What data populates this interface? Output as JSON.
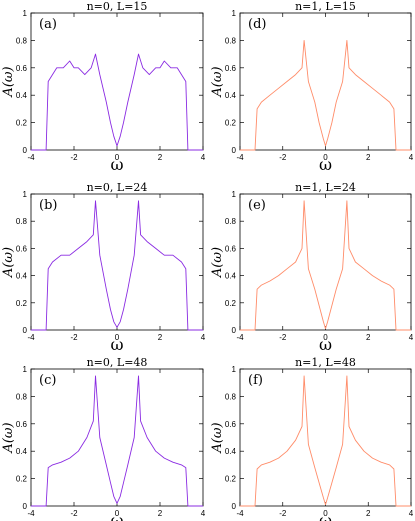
{
  "colors": {
    "n0": "#8a2be2",
    "n1": "#ff8c69"
  },
  "chart_data": [
    {
      "type": "line",
      "panel_label": "(a)",
      "title": "n=0, L=15",
      "xlabel": "ω",
      "ylabel": "A(ω)",
      "xlim": [
        -4,
        4
      ],
      "ylim": [
        0,
        1
      ],
      "xticks": [
        -4,
        -2,
        0,
        2,
        4
      ],
      "yticks": [
        0,
        0.2,
        0.4,
        0.6,
        0.8,
        1
      ],
      "series": [
        {
          "x": [
            -4,
            -3.3,
            -3.2,
            -3.0,
            -2.8,
            -2.5,
            -2.2,
            -2.0,
            -1.8,
            -1.5,
            -1.2,
            -1.0,
            -0.8,
            -0.5,
            -0.3,
            -0.15,
            0,
            0.15,
            0.3,
            0.5,
            0.8,
            1.0,
            1.2,
            1.5,
            1.8,
            2.0,
            2.2,
            2.5,
            2.8,
            3.0,
            3.2,
            3.3,
            4
          ],
          "y": [
            0,
            0,
            0.5,
            0.55,
            0.6,
            0.6,
            0.65,
            0.6,
            0.6,
            0.55,
            0.6,
            0.7,
            0.55,
            0.35,
            0.2,
            0.1,
            0.03,
            0.1,
            0.2,
            0.35,
            0.55,
            0.7,
            0.6,
            0.55,
            0.6,
            0.6,
            0.65,
            0.6,
            0.6,
            0.55,
            0.5,
            0,
            0
          ]
        }
      ]
    },
    {
      "type": "line",
      "panel_label": "(d)",
      "title": "n=1, L=15",
      "xlabel": "ω",
      "ylabel": "A(ω)",
      "xlim": [
        -4,
        4
      ],
      "ylim": [
        0,
        1
      ],
      "xticks": [
        -4,
        -2,
        0,
        2,
        4
      ],
      "yticks": [
        0,
        0.2,
        0.4,
        0.6,
        0.8,
        1
      ],
      "series": [
        {
          "x": [
            -4,
            -3.3,
            -3.2,
            -3.0,
            -2.6,
            -2.2,
            -1.8,
            -1.4,
            -1.1,
            -1.0,
            -0.8,
            -0.5,
            -0.3,
            -0.1,
            0,
            0.1,
            0.3,
            0.5,
            0.8,
            1.0,
            1.1,
            1.4,
            1.8,
            2.2,
            2.6,
            3.0,
            3.2,
            3.3,
            4
          ],
          "y": [
            0,
            0,
            0.3,
            0.35,
            0.4,
            0.45,
            0.5,
            0.55,
            0.6,
            0.8,
            0.5,
            0.35,
            0.2,
            0.08,
            0.03,
            0.08,
            0.2,
            0.35,
            0.5,
            0.8,
            0.6,
            0.55,
            0.5,
            0.45,
            0.4,
            0.35,
            0.3,
            0,
            0
          ]
        }
      ]
    },
    {
      "type": "line",
      "panel_label": "(b)",
      "title": "n=0, L=24",
      "xlabel": "ω",
      "ylabel": "A(ω)",
      "xlim": [
        -4,
        4
      ],
      "ylim": [
        0,
        1
      ],
      "xticks": [
        -4,
        -2,
        0,
        2,
        4
      ],
      "yticks": [
        0,
        0.2,
        0.4,
        0.6,
        0.8,
        1
      ],
      "series": [
        {
          "x": [
            -4,
            -3.3,
            -3.2,
            -3.0,
            -2.6,
            -2.2,
            -1.8,
            -1.4,
            -1.1,
            -1.0,
            -0.8,
            -0.5,
            -0.3,
            -0.15,
            0,
            0.15,
            0.3,
            0.5,
            0.8,
            1.0,
            1.1,
            1.4,
            1.8,
            2.2,
            2.6,
            3.0,
            3.2,
            3.3,
            4
          ],
          "y": [
            0,
            0,
            0.45,
            0.5,
            0.55,
            0.55,
            0.6,
            0.65,
            0.7,
            0.95,
            0.55,
            0.3,
            0.15,
            0.06,
            0.02,
            0.06,
            0.15,
            0.3,
            0.55,
            0.95,
            0.7,
            0.65,
            0.6,
            0.55,
            0.55,
            0.5,
            0.45,
            0,
            0
          ]
        }
      ]
    },
    {
      "type": "line",
      "panel_label": "(e)",
      "title": "n=1, L=24",
      "xlabel": "ω",
      "ylabel": "A(ω)",
      "xlim": [
        -4,
        4
      ],
      "ylim": [
        0,
        1
      ],
      "xticks": [
        -4,
        -2,
        0,
        2,
        4
      ],
      "yticks": [
        0,
        0.2,
        0.4,
        0.6,
        0.8,
        1
      ],
      "series": [
        {
          "x": [
            -4,
            -3.3,
            -3.2,
            -3.0,
            -2.6,
            -2.2,
            -1.8,
            -1.4,
            -1.1,
            -1.0,
            -0.8,
            -0.5,
            -0.3,
            -0.1,
            0,
            0.1,
            0.3,
            0.5,
            0.8,
            1.0,
            1.1,
            1.4,
            1.8,
            2.2,
            2.6,
            3.0,
            3.2,
            3.3,
            4
          ],
          "y": [
            0,
            0,
            0.3,
            0.33,
            0.36,
            0.4,
            0.45,
            0.5,
            0.6,
            0.95,
            0.45,
            0.3,
            0.18,
            0.06,
            0.01,
            0.06,
            0.18,
            0.3,
            0.45,
            0.95,
            0.6,
            0.5,
            0.45,
            0.4,
            0.36,
            0.33,
            0.3,
            0,
            0
          ]
        }
      ]
    },
    {
      "type": "line",
      "panel_label": "(c)",
      "title": "n=0, L=48",
      "xlabel": "ω",
      "ylabel": "A(ω)",
      "xlim": [
        -4,
        4
      ],
      "ylim": [
        0,
        1
      ],
      "xticks": [
        -4,
        -2,
        0,
        2,
        4
      ],
      "yticks": [
        0,
        0.2,
        0.4,
        0.6,
        0.8,
        1
      ],
      "series": [
        {
          "x": [
            -4,
            -3.3,
            -3.2,
            -3.0,
            -2.6,
            -2.2,
            -1.8,
            -1.4,
            -1.1,
            -1.0,
            -0.8,
            -0.5,
            -0.3,
            -0.15,
            0,
            0.15,
            0.3,
            0.5,
            0.8,
            1.0,
            1.1,
            1.4,
            1.8,
            2.2,
            2.6,
            3.0,
            3.2,
            3.3,
            4
          ],
          "y": [
            0,
            0,
            0.28,
            0.3,
            0.32,
            0.35,
            0.4,
            0.5,
            0.62,
            0.95,
            0.5,
            0.3,
            0.17,
            0.07,
            0.02,
            0.07,
            0.17,
            0.3,
            0.5,
            0.95,
            0.62,
            0.5,
            0.4,
            0.35,
            0.32,
            0.3,
            0.28,
            0,
            0
          ]
        }
      ]
    },
    {
      "type": "line",
      "panel_label": "(f)",
      "title": "n=1, L=48",
      "xlabel": "ω",
      "ylabel": "A(ω)",
      "xlim": [
        -4,
        4
      ],
      "ylim": [
        0,
        1
      ],
      "xticks": [
        -4,
        -2,
        0,
        2,
        4
      ],
      "yticks": [
        0,
        0.2,
        0.4,
        0.6,
        0.8,
        1
      ],
      "series": [
        {
          "x": [
            -4,
            -3.3,
            -3.2,
            -3.0,
            -2.6,
            -2.2,
            -1.8,
            -1.4,
            -1.1,
            -1.0,
            -0.8,
            -0.5,
            -0.3,
            -0.1,
            0,
            0.1,
            0.3,
            0.5,
            0.8,
            1.0,
            1.1,
            1.4,
            1.8,
            2.2,
            2.6,
            3.0,
            3.2,
            3.3,
            4
          ],
          "y": [
            0,
            0,
            0.27,
            0.3,
            0.32,
            0.35,
            0.4,
            0.48,
            0.58,
            0.95,
            0.45,
            0.28,
            0.17,
            0.06,
            0.01,
            0.06,
            0.17,
            0.28,
            0.45,
            0.95,
            0.58,
            0.48,
            0.4,
            0.35,
            0.32,
            0.3,
            0.27,
            0,
            0
          ]
        }
      ]
    }
  ]
}
